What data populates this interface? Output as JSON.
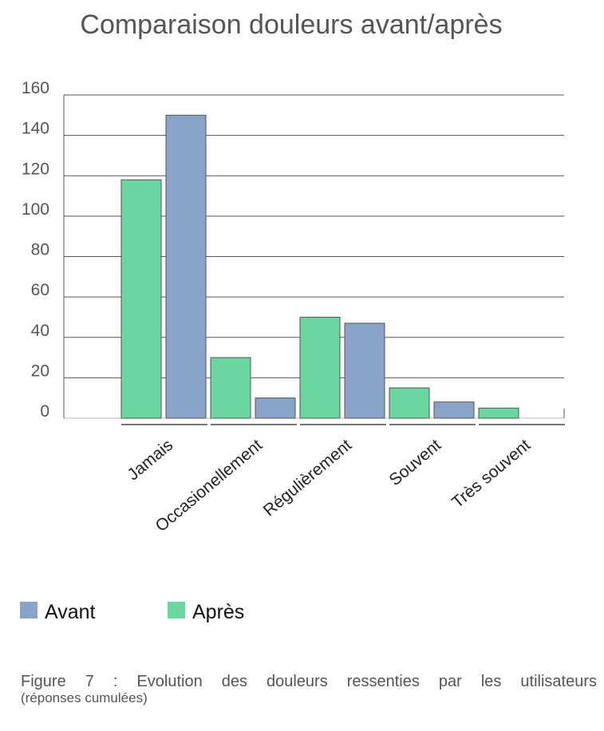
{
  "chart_data": {
    "type": "bar",
    "title": "Comparaison douleurs avant/après",
    "categories": [
      "Jamais",
      "Occasionellement",
      "Régulièrement",
      "Souvent",
      "Très souvent"
    ],
    "series": [
      {
        "name": "Après",
        "color": "#6dd6a0",
        "values": [
          118,
          30,
          50,
          15,
          5
        ]
      },
      {
        "name": "Avant",
        "color": "#8aa3c8",
        "values": [
          150,
          10,
          47,
          8,
          0
        ]
      }
    ],
    "ylim": [
      0,
      160
    ],
    "yticks": [
      "0",
      "20",
      "40",
      "60",
      "80",
      "100",
      "120",
      "140",
      "160"
    ],
    "xlabel": "",
    "ylabel": "",
    "grid": true,
    "legend": {
      "placement": "bottom-left",
      "items": [
        {
          "label": "Avant",
          "color": "#8aa3c8"
        },
        {
          "label": "Après",
          "color": "#6dd6a0"
        }
      ]
    }
  },
  "caption": {
    "line1": "Figure 7 : Evolution des douleurs ressenties par les utilisateurs",
    "line2": "(réponses cumulées)"
  }
}
